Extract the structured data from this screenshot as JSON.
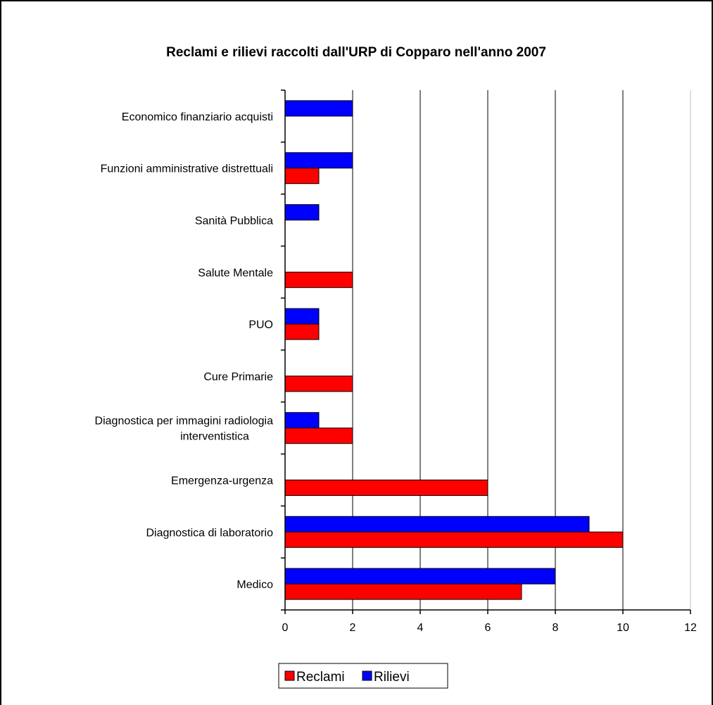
{
  "chart_data": {
    "type": "bar",
    "orientation": "horizontal",
    "title": "Reclami e rilievi raccolti dall'URP di Copparo nell'anno 2007",
    "categories": [
      "Economico finanziario acquisti",
      "Funzioni amministrative distrettuali",
      "Sanità Pubblica",
      "Salute Mentale",
      "PUO",
      "Cure Primarie",
      "Diagnostica per immagini radiologia interventistica",
      "Emergenza-urgenza",
      "Diagnostica di laboratorio",
      "Medico"
    ],
    "category_label_lines": [
      [
        "Economico finanziario acquisti"
      ],
      [
        "Funzioni amministrative distrettuali"
      ],
      [
        "Sanità Pubblica"
      ],
      [
        "Salute Mentale"
      ],
      [
        "PUO"
      ],
      [
        "Cure Primarie"
      ],
      [
        "Diagnostica per immagini radiologia",
        "interventistica"
      ],
      [
        "Emergenza-urgenza"
      ],
      [
        "Diagnostica di laboratorio"
      ],
      [
        "Medico"
      ]
    ],
    "series": [
      {
        "name": "Reclami",
        "color": "#ff0000",
        "values": [
          0,
          1,
          0,
          2,
          1,
          2,
          2,
          6,
          10,
          7
        ]
      },
      {
        "name": "Rilievi",
        "color": "#0000ff",
        "values": [
          2,
          2,
          1,
          0,
          1,
          0,
          1,
          0,
          9,
          8
        ]
      }
    ],
    "xlim": [
      0,
      12
    ],
    "xticks": [
      "0",
      "2",
      "4",
      "6",
      "8",
      "10",
      "12"
    ],
    "grid": "vertical",
    "legend": "bottom"
  }
}
